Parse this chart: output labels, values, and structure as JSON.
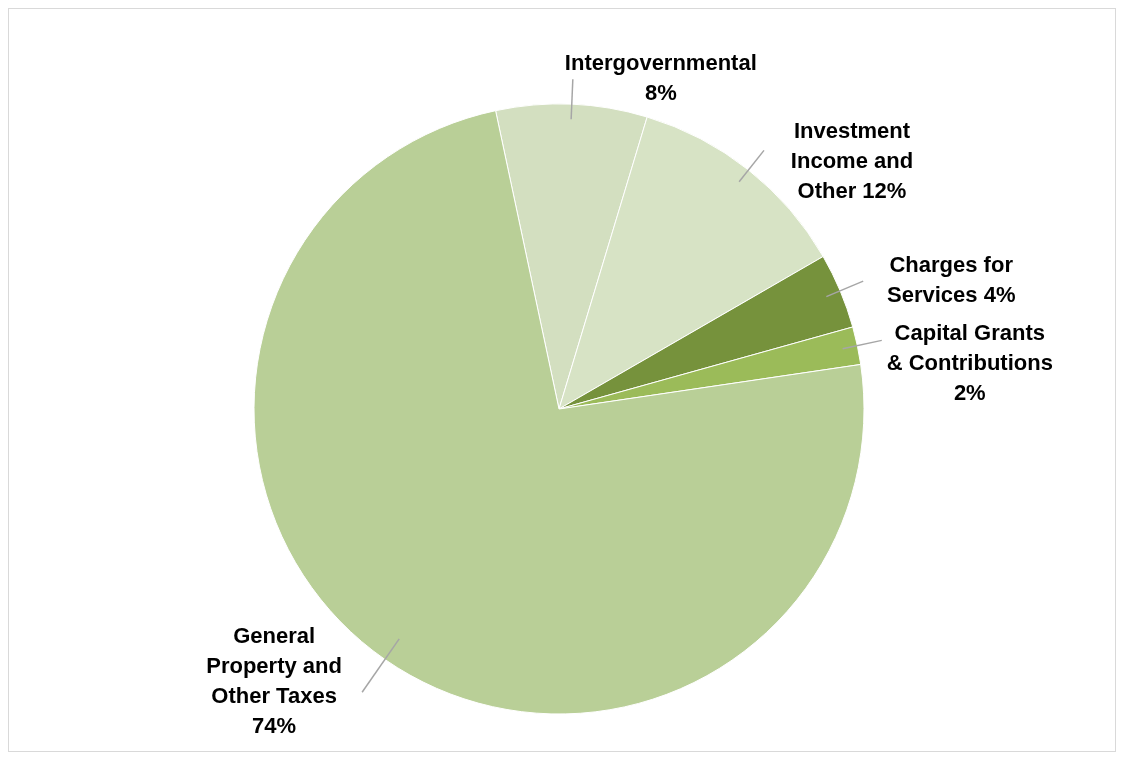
{
  "chart_data": {
    "type": "pie",
    "categories": [
      "Intergovernmental",
      "Investment Income and Other",
      "Charges for Services",
      "Capital Grants & Contributions",
      "General Property and Other Taxes"
    ],
    "values": [
      8,
      12,
      4,
      2,
      74
    ],
    "value_labels": [
      "8%",
      "12%",
      "4%",
      "2%",
      "74%"
    ],
    "colors": [
      "#d3dfc0",
      "#d7e3c5",
      "#76923c",
      "#9bbb59",
      "#b9cf97"
    ],
    "legend": false
  }
}
